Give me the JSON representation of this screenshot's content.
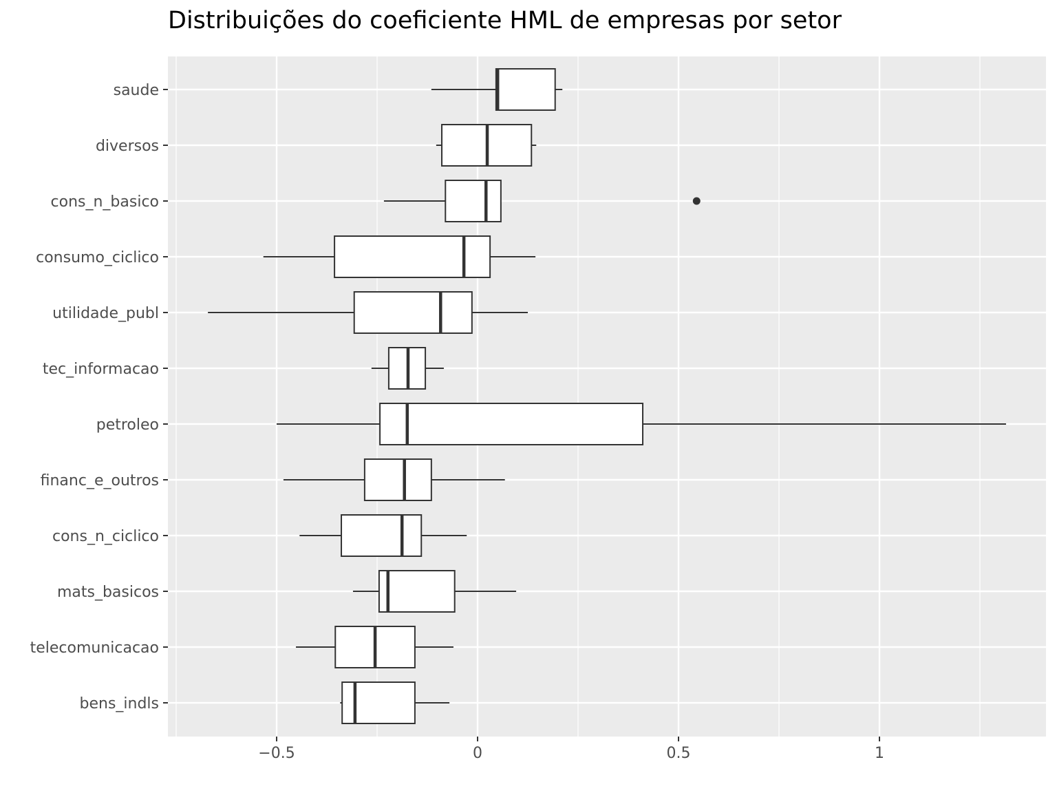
{
  "chart_data": {
    "type": "boxplot",
    "orientation": "horizontal",
    "title": "Distribuições do coeficiente HML de empresas por setor",
    "xlabel": "",
    "ylabel": "",
    "xlim": [
      -0.75,
      1.43
    ],
    "x_ticks": [
      -0.5,
      0,
      0.5,
      1
    ],
    "x_tick_labels": [
      "−0.5",
      "0",
      "0.5",
      "1"
    ],
    "grid": true,
    "legend": null,
    "categories": [
      "saude",
      "diversos",
      "cons_n_basico",
      "consumo_ciclico",
      "utilidade_publ",
      "tec_informacao",
      "petroleo",
      "financ_e_outros",
      "cons_n_ciclico",
      "mats_basicos",
      "telecomunicacao",
      "bens_indls"
    ],
    "boxes": [
      {
        "label": "saude",
        "whisker_low": -0.115,
        "q1": 0.046,
        "median": 0.05,
        "q3": 0.193,
        "whisker_high": 0.211,
        "outliers": []
      },
      {
        "label": "diversos",
        "whisker_low": -0.103,
        "q1": -0.089,
        "median": 0.024,
        "q3": 0.134,
        "whisker_high": 0.146,
        "outliers": []
      },
      {
        "label": "cons_n_basico",
        "whisker_low": -0.233,
        "q1": -0.08,
        "median": 0.021,
        "q3": 0.058,
        "whisker_high": 0.058,
        "outliers": [
          0.545
        ]
      },
      {
        "label": "consumo_ciclico",
        "whisker_low": -0.533,
        "q1": -0.356,
        "median": -0.034,
        "q3": 0.031,
        "whisker_high": 0.144,
        "outliers": []
      },
      {
        "label": "utilidade_publ",
        "whisker_low": -0.671,
        "q1": -0.307,
        "median": -0.092,
        "q3": -0.014,
        "whisker_high": 0.125,
        "outliers": []
      },
      {
        "label": "tec_informacao",
        "whisker_low": -0.264,
        "q1": -0.221,
        "median": -0.173,
        "q3": -0.13,
        "whisker_high": -0.084,
        "outliers": []
      },
      {
        "label": "petroleo",
        "whisker_low": -0.5,
        "q1": -0.243,
        "median": -0.175,
        "q3": 0.411,
        "whisker_high": 1.315,
        "outliers": []
      },
      {
        "label": "financ_e_outros",
        "whisker_low": -0.483,
        "q1": -0.281,
        "median": -0.182,
        "q3": -0.115,
        "whisker_high": 0.068,
        "outliers": []
      },
      {
        "label": "cons_n_ciclico",
        "whisker_low": -0.443,
        "q1": -0.339,
        "median": -0.188,
        "q3": -0.14,
        "whisker_high": -0.027,
        "outliers": []
      },
      {
        "label": "mats_basicos",
        "whisker_low": -0.31,
        "q1": -0.245,
        "median": -0.223,
        "q3": -0.057,
        "whisker_high": 0.096,
        "outliers": []
      },
      {
        "label": "telecomunicacao",
        "whisker_low": -0.452,
        "q1": -0.354,
        "median": -0.255,
        "q3": -0.156,
        "whisker_high": -0.06,
        "outliers": []
      },
      {
        "label": "bens_indls",
        "whisker_low": -0.342,
        "q1": -0.337,
        "median": -0.305,
        "q3": -0.156,
        "whisker_high": -0.07,
        "outliers": []
      }
    ],
    "colors": {
      "panel_bg": "#ebebeb",
      "grid": "#ffffff",
      "box_fill": "#ffffff",
      "box_line": "#333333",
      "text": "#4d4d4d"
    }
  }
}
